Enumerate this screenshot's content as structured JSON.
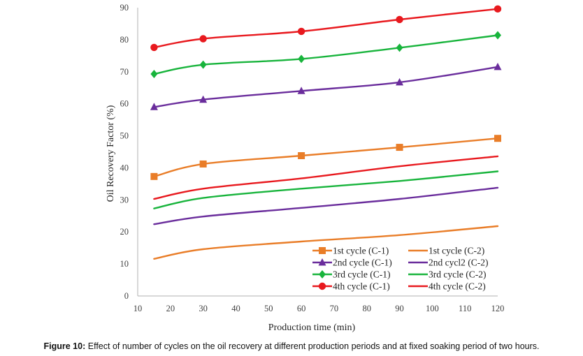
{
  "chart_data": {
    "type": "line",
    "xlabel": "Production time (min)",
    "ylabel": "Oil Recovery Factor (%)",
    "xlim": [
      10,
      120
    ],
    "ylim": [
      0,
      90
    ],
    "xticks": [
      "10",
      "20",
      "30",
      "40",
      "50",
      "60",
      "70",
      "80",
      "90",
      "100",
      "110",
      "120"
    ],
    "yticks": [
      "0",
      "10",
      "20",
      "30",
      "40",
      "50",
      "60",
      "70",
      "80",
      "90"
    ],
    "grid": false,
    "legend_position": "bottom-right",
    "series": [
      {
        "name": "1st cycle (C-1)",
        "color": "#e97d28",
        "marker": "square",
        "x": [
          15,
          30,
          60,
          90,
          120
        ],
        "y": [
          37.3,
          41.2,
          43.8,
          46.4,
          49.2
        ]
      },
      {
        "name": "1st cycle (C-2)",
        "color": "#e97d28",
        "marker": "none",
        "x": [
          15,
          30,
          60,
          90,
          120
        ],
        "y": [
          11.6,
          14.6,
          17.0,
          19.0,
          21.8
        ]
      },
      {
        "name": "2nd cycle (C-1)",
        "color": "#6a2d9c",
        "marker": "triangle",
        "x": [
          15,
          30,
          60,
          90,
          120
        ],
        "y": [
          59.0,
          61.3,
          64.0,
          66.7,
          71.5
        ]
      },
      {
        "name": "2nd cycl2 (C-2)",
        "color": "#6a2d9c",
        "marker": "none",
        "x": [
          15,
          30,
          60,
          90,
          120
        ],
        "y": [
          22.4,
          24.8,
          27.5,
          30.3,
          33.8
        ]
      },
      {
        "name": "3rd cycle (C-1)",
        "color": "#18b43c",
        "marker": "diamond",
        "x": [
          15,
          30,
          60,
          90,
          120
        ],
        "y": [
          69.3,
          72.2,
          74.0,
          77.5,
          81.4
        ]
      },
      {
        "name": "3rd cycle (C-2)",
        "color": "#18b43c",
        "marker": "none",
        "x": [
          15,
          30,
          60,
          90,
          120
        ],
        "y": [
          27.3,
          30.6,
          33.5,
          35.9,
          38.9
        ]
      },
      {
        "name": "4th cycle (C-1)",
        "color": "#e8191e",
        "marker": "circle",
        "x": [
          15,
          30,
          60,
          90,
          120
        ],
        "y": [
          77.6,
          80.3,
          82.6,
          86.3,
          89.6
        ]
      },
      {
        "name": "4th cycle (C-2)",
        "color": "#e8191e",
        "marker": "none",
        "x": [
          15,
          30,
          60,
          90,
          120
        ],
        "y": [
          30.3,
          33.5,
          36.7,
          40.5,
          43.6
        ]
      }
    ]
  },
  "caption": {
    "label": "Figure 10:",
    "text": " Effect of number of cycles on the oil recovery at different production periods and at fixed soaking period of two hours."
  }
}
